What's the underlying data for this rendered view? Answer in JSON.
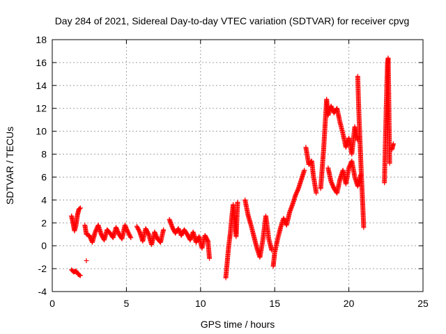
{
  "chart_data": {
    "type": "scatter",
    "title": "Day 284 of 2021, Sidereal Day-to-day VTEC variation (SDTVAR) for receiver cpvg",
    "xlabel": "GPS time / hours",
    "ylabel": "SDTVAR / TECUs",
    "xlim": [
      0,
      25
    ],
    "ylim": [
      -4,
      18
    ],
    "xticks": [
      "0",
      "5",
      "10",
      "15",
      "20",
      "25"
    ],
    "yticks": [
      "-4",
      "-2",
      "0",
      "2",
      "4",
      "6",
      "8",
      "10",
      "12",
      "14",
      "16",
      "18"
    ],
    "grid": true,
    "marker": "+",
    "color": "#ff0000",
    "series": [
      {
        "name": "SDTVAR",
        "segments": [
          {
            "x": [
              1.3,
              1.4,
              1.5,
              1.6,
              1.7,
              1.8,
              1.9
            ],
            "y": [
              2.6,
              2.0,
              1.3,
              1.8,
              2.7,
              3.2,
              3.3
            ]
          },
          {
            "x": [
              1.3,
              1.45,
              1.6,
              1.75,
              1.9
            ],
            "y": [
              -2.1,
              -2.3,
              -2.2,
              -2.5,
              -2.6
            ]
          },
          {
            "x": [
              2.2,
              2.3,
              2.5,
              2.7,
              2.9,
              3.1,
              3.3,
              3.5,
              3.7,
              3.9,
              4.1,
              4.3,
              4.5,
              4.7,
              4.9,
              5.1,
              5.3
            ],
            "y": [
              1.8,
              1.0,
              0.9,
              0.3,
              1.2,
              1.8,
              1.0,
              0.5,
              1.4,
              1.1,
              0.7,
              1.6,
              1.0,
              0.6,
              1.8,
              1.2,
              0.7
            ]
          },
          {
            "x": [
              2.3
            ],
            "y": [
              -1.3
            ]
          },
          {
            "x": [
              5.7,
              5.9,
              6.1,
              6.3,
              6.5,
              6.7,
              6.9,
              7.1,
              7.3,
              7.5
            ],
            "y": [
              1.7,
              1.2,
              0.4,
              1.5,
              1.0,
              0.1,
              1.2,
              0.6,
              0.3,
              1.4
            ]
          },
          {
            "x": [
              7.9,
              8.1,
              8.3,
              8.5,
              8.7,
              8.9,
              9.1,
              9.3,
              9.5,
              9.7,
              9.9,
              10.1,
              10.3,
              10.5,
              10.6
            ],
            "y": [
              2.3,
              1.6,
              1.1,
              1.5,
              0.9,
              1.4,
              1.0,
              0.5,
              1.2,
              0.3,
              0.8,
              -0.2,
              0.9,
              0.4,
              -1.1
            ]
          },
          {
            "x": [
              11.7,
              11.8,
              11.9,
              12.0,
              12.1,
              12.2,
              12.3,
              12.4,
              12.5
            ],
            "y": [
              -2.8,
              -1.4,
              0.0,
              1.0,
              2.4,
              3.6,
              2.1,
              0.8,
              3.8
            ]
          },
          {
            "x": [
              13.0,
              13.2,
              13.4,
              13.6,
              13.8,
              14.0,
              14.2,
              14.4,
              14.6,
              14.8
            ],
            "y": [
              4.0,
              2.7,
              1.8,
              0.8,
              -0.2,
              -1.0,
              0.5,
              2.6,
              0.6,
              -0.4
            ]
          },
          {
            "x": [
              14.9,
              15.0,
              15.2,
              15.4,
              15.6,
              15.8,
              16.0,
              16.2,
              16.4,
              16.6,
              16.8,
              17.0
            ],
            "y": [
              -1.8,
              -0.6,
              0.6,
              1.6,
              2.4,
              1.8,
              2.9,
              3.6,
              4.4,
              5.0,
              5.8,
              6.6
            ]
          },
          {
            "x": [
              17.1,
              17.3,
              17.5,
              17.6,
              17.8
            ],
            "y": [
              8.6,
              7.1,
              7.4,
              6.2,
              4.6
            ]
          },
          {
            "x": [
              18.1,
              18.3,
              18.5,
              18.6,
              18.8,
              19.0,
              19.2,
              19.4,
              19.6,
              19.8,
              20.0,
              20.2,
              20.4,
              20.6
            ],
            "y": [
              5.0,
              8.4,
              12.8,
              11.4,
              12.2,
              11.6,
              12.0,
              10.8,
              9.8,
              8.6,
              9.4,
              8.0,
              10.4,
              9.2
            ]
          },
          {
            "x": [
              18.6,
              18.8,
              19.0,
              19.2,
              19.4,
              19.6,
              19.8,
              20.0,
              20.2,
              20.4,
              20.6,
              20.8
            ],
            "y": [
              6.8,
              5.6,
              5.0,
              4.6,
              5.8,
              6.6,
              5.4,
              6.8,
              7.4,
              6.0,
              5.2,
              6.2
            ]
          },
          {
            "x": [
              20.6,
              20.65,
              20.7,
              20.75,
              20.8,
              20.85,
              20.9,
              20.95,
              21.0
            ],
            "y": [
              14.8,
              12.6,
              10.8,
              9.2,
              7.6,
              6.0,
              4.6,
              3.2,
              1.6
            ]
          },
          {
            "x": [
              22.4,
              22.45,
              22.5,
              22.55,
              22.6,
              22.65,
              22.7,
              22.75
            ],
            "y": [
              5.5,
              8.4,
              11.0,
              13.4,
              15.8,
              16.4,
              12.2,
              7.2
            ]
          },
          {
            "x": [
              22.9,
              23.0
            ],
            "y": [
              8.4,
              8.9
            ]
          }
        ]
      }
    ]
  }
}
